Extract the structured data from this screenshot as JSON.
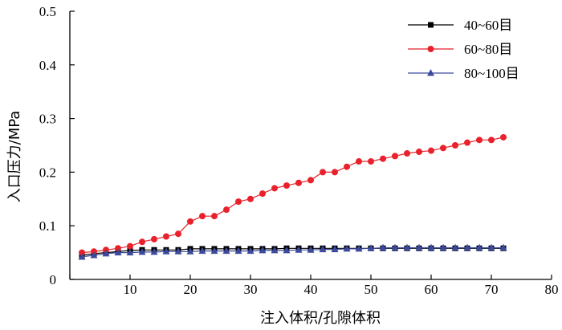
{
  "chart_data": {
    "type": "line",
    "xlabel": "注入体积/孔隙体积",
    "ylabel": "入口压力/MPa",
    "xlim": [
      0,
      80
    ],
    "ylim": [
      0,
      0.5
    ],
    "xticks": [
      0,
      10,
      20,
      30,
      40,
      50,
      60,
      70,
      80
    ],
    "yticks": [
      0,
      0.1,
      0.2,
      0.3,
      0.4,
      0.5
    ],
    "xtick_labels": [
      "",
      "10",
      "20",
      "30",
      "40",
      "50",
      "60",
      "70",
      "80"
    ],
    "ytick_labels": [
      "0",
      "0.1",
      "0.2",
      "0.3",
      "0.4",
      "0.5"
    ],
    "grid": false,
    "legend_position": "top-right",
    "series": [
      {
        "name": "40~60目",
        "color": "#000000",
        "marker": "square",
        "x": [
          2,
          4,
          6,
          8,
          10,
          12,
          14,
          16,
          18,
          20,
          22,
          24,
          26,
          28,
          30,
          32,
          34,
          36,
          38,
          40,
          42,
          44,
          46,
          48,
          50,
          52,
          54,
          56,
          58,
          60,
          62,
          64,
          66,
          68,
          70,
          72
        ],
        "y": [
          0.045,
          0.048,
          0.05,
          0.052,
          0.054,
          0.055,
          0.055,
          0.055,
          0.055,
          0.057,
          0.057,
          0.057,
          0.057,
          0.057,
          0.057,
          0.057,
          0.057,
          0.058,
          0.058,
          0.058,
          0.058,
          0.058,
          0.058,
          0.058,
          0.058,
          0.058,
          0.058,
          0.058,
          0.058,
          0.058,
          0.058,
          0.058,
          0.058,
          0.058,
          0.058,
          0.058
        ]
      },
      {
        "name": "60~80目",
        "color": "#e8212b",
        "marker": "circle",
        "x": [
          2,
          4,
          6,
          8,
          10,
          12,
          14,
          16,
          18,
          20,
          22,
          24,
          26,
          28,
          30,
          32,
          34,
          36,
          38,
          40,
          42,
          44,
          46,
          48,
          50,
          52,
          54,
          56,
          58,
          60,
          62,
          64,
          66,
          68,
          70,
          72
        ],
        "y": [
          0.05,
          0.052,
          0.055,
          0.058,
          0.062,
          0.07,
          0.075,
          0.08,
          0.085,
          0.108,
          0.118,
          0.118,
          0.13,
          0.145,
          0.15,
          0.16,
          0.17,
          0.175,
          0.18,
          0.185,
          0.2,
          0.2,
          0.21,
          0.22,
          0.22,
          0.225,
          0.23,
          0.235,
          0.238,
          0.24,
          0.245,
          0.25,
          0.255,
          0.26,
          0.26,
          0.265
        ]
      },
      {
        "name": "80~100目",
        "color": "#3c4a9c",
        "marker": "triangle",
        "x": [
          2,
          4,
          6,
          8,
          10,
          12,
          14,
          16,
          18,
          20,
          22,
          24,
          26,
          28,
          30,
          32,
          34,
          36,
          38,
          40,
          42,
          44,
          46,
          48,
          50,
          52,
          54,
          56,
          58,
          60,
          62,
          64,
          66,
          68,
          70,
          72
        ],
        "y": [
          0.042,
          0.045,
          0.048,
          0.05,
          0.05,
          0.051,
          0.051,
          0.052,
          0.052,
          0.052,
          0.053,
          0.053,
          0.053,
          0.053,
          0.053,
          0.054,
          0.054,
          0.054,
          0.055,
          0.055,
          0.056,
          0.056,
          0.057,
          0.057,
          0.058,
          0.059,
          0.059,
          0.059,
          0.059,
          0.059,
          0.059,
          0.059,
          0.059,
          0.059,
          0.059,
          0.059
        ]
      }
    ]
  }
}
